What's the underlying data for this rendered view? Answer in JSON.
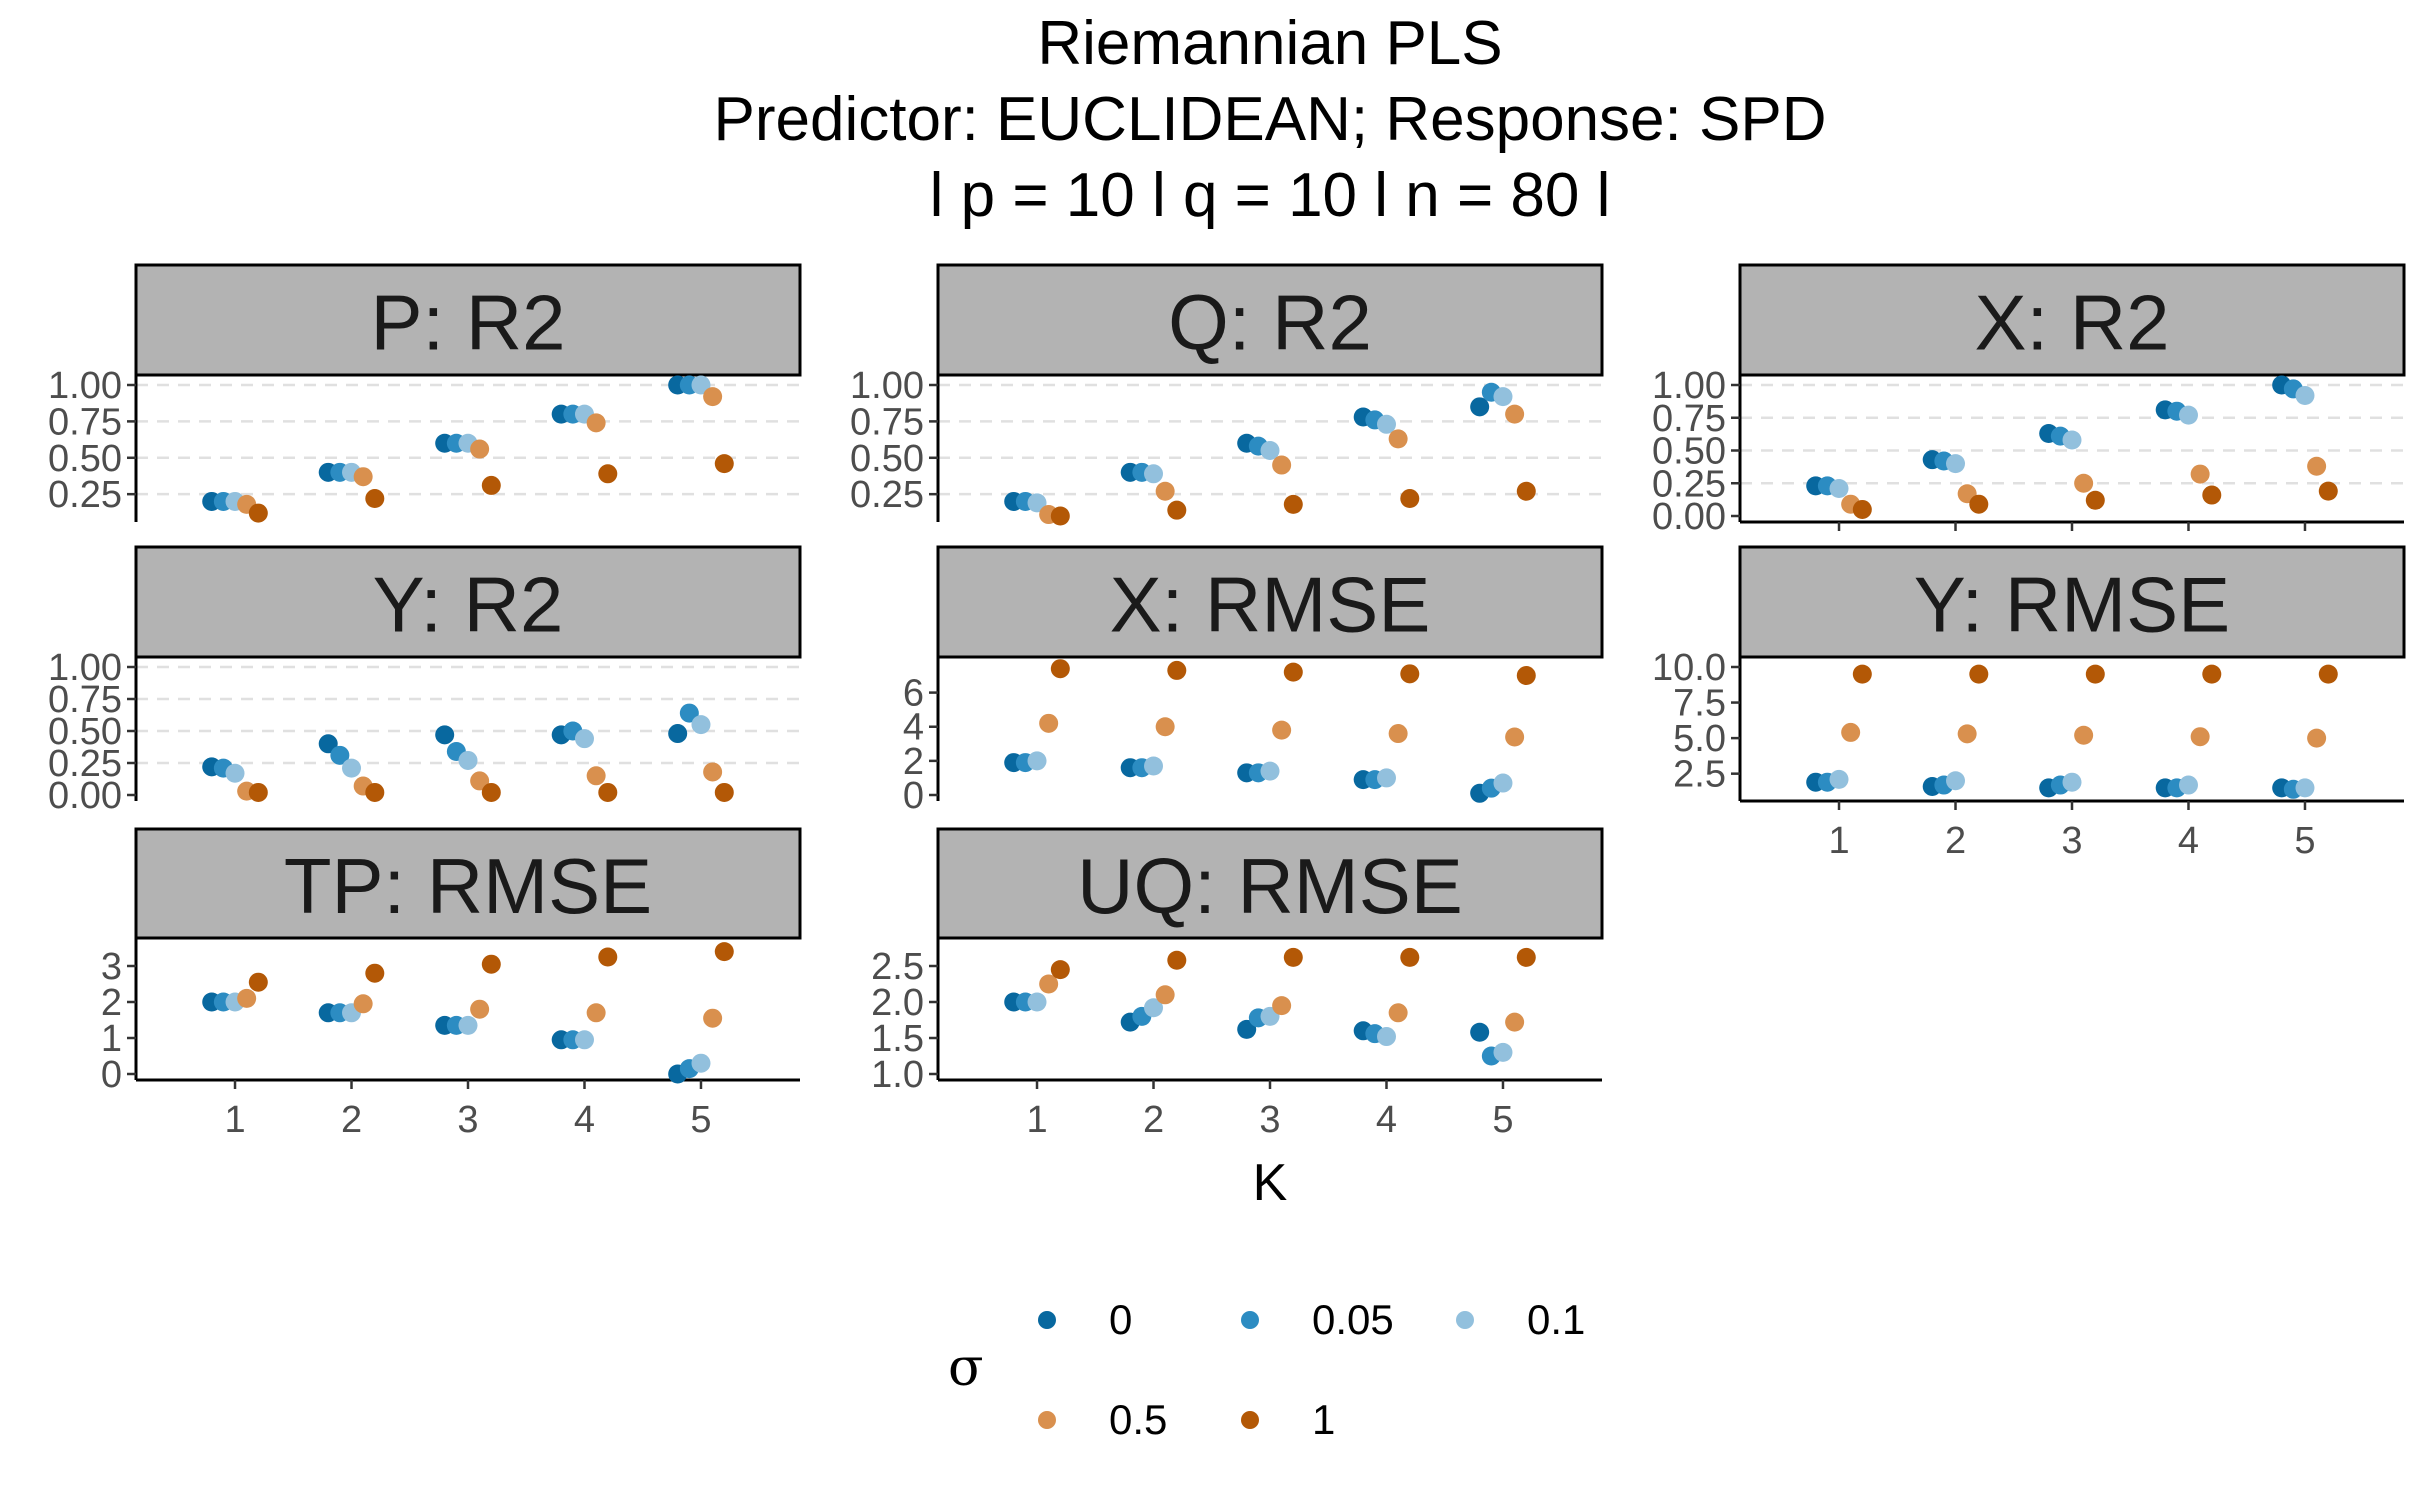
{
  "title": {
    "line1": "Riemannian PLS",
    "line2": "Predictor: EUCLIDEAN; Response: SPD",
    "line3": "l p = 10 l q = 10 l n = 80 l"
  },
  "xlabel": "K",
  "colors": {
    "0": "#08689f",
    "0.05": "#2c8cc2",
    "0.1": "#92c0dd",
    "0.5": "#d9904e",
    "1": "#b35806",
    "strip_fill": "#b3b3b3",
    "grid": "#e0e0e0"
  },
  "legend": {
    "title": "σ",
    "items": [
      {
        "key": "0",
        "label": "0"
      },
      {
        "key": "0.05",
        "label": "0.05"
      },
      {
        "key": "0.1",
        "label": "0.1"
      },
      {
        "key": "0.5",
        "label": "0.5"
      },
      {
        "key": "1",
        "label": "1"
      }
    ]
  },
  "chart_data": {
    "type": "scatter",
    "x_categories": [
      "1",
      "2",
      "3",
      "4",
      "5"
    ],
    "sigma_levels": [
      "0",
      "0.05",
      "0.1",
      "0.5",
      "1"
    ],
    "panels": [
      {
        "id": "p-r2",
        "title": "P: R2",
        "ylim": [
          0.1,
          1.0
        ],
        "yticks": [
          0.25,
          0.5,
          0.75,
          1.0
        ],
        "ytick_labels": [
          "0.25",
          "0.50",
          "0.75",
          "1.00"
        ],
        "grid_y": [
          0.25,
          0.5,
          0.75,
          1.0
        ],
        "x_axis": false,
        "series": [
          {
            "sigma": "0",
            "values": [
              0.2,
              0.4,
              0.6,
              0.8,
              1.0
            ]
          },
          {
            "sigma": "0.05",
            "values": [
              0.2,
              0.4,
              0.6,
              0.8,
              1.0
            ]
          },
          {
            "sigma": "0.1",
            "values": [
              0.2,
              0.4,
              0.6,
              0.8,
              1.0
            ]
          },
          {
            "sigma": "0.5",
            "values": [
              0.18,
              0.37,
              0.56,
              0.74,
              0.92
            ]
          },
          {
            "sigma": "1",
            "values": [
              0.12,
              0.22,
              0.31,
              0.39,
              0.46
            ]
          }
        ]
      },
      {
        "id": "q-r2",
        "title": "Q: R2",
        "ylim": [
          0.1,
          1.0
        ],
        "yticks": [
          0.25,
          0.5,
          0.75,
          1.0
        ],
        "ytick_labels": [
          "0.25",
          "0.50",
          "0.75",
          "1.00"
        ],
        "grid_y": [
          0.25,
          0.5,
          0.75,
          1.0
        ],
        "x_axis": false,
        "series": [
          {
            "sigma": "0",
            "values": [
              0.2,
              0.4,
              0.6,
              0.78,
              0.85
            ]
          },
          {
            "sigma": "0.05",
            "values": [
              0.2,
              0.4,
              0.58,
              0.76,
              0.95
            ]
          },
          {
            "sigma": "0.1",
            "values": [
              0.19,
              0.39,
              0.55,
              0.73,
              0.92
            ]
          },
          {
            "sigma": "0.5",
            "values": [
              0.11,
              0.27,
              0.45,
              0.63,
              0.8
            ]
          },
          {
            "sigma": "1",
            "values": [
              0.1,
              0.14,
              0.18,
              0.22,
              0.27
            ]
          }
        ]
      },
      {
        "id": "x-r2",
        "title": "X: R2",
        "ylim": [
          0.0,
          1.0
        ],
        "yticks": [
          0.0,
          0.25,
          0.5,
          0.75,
          1.0
        ],
        "ytick_labels": [
          "0.00",
          "0.25",
          "0.50",
          "0.75",
          "1.00"
        ],
        "grid_y": [
          0.25,
          0.5,
          0.75,
          1.0
        ],
        "x_axis": true,
        "series": [
          {
            "sigma": "0",
            "values": [
              0.23,
              0.43,
              0.63,
              0.81,
              1.0
            ]
          },
          {
            "sigma": "0.05",
            "values": [
              0.23,
              0.42,
              0.61,
              0.8,
              0.97
            ]
          },
          {
            "sigma": "0.1",
            "values": [
              0.21,
              0.4,
              0.58,
              0.77,
              0.92
            ]
          },
          {
            "sigma": "0.5",
            "values": [
              0.09,
              0.17,
              0.25,
              0.32,
              0.38
            ]
          },
          {
            "sigma": "1",
            "values": [
              0.05,
              0.09,
              0.12,
              0.16,
              0.19
            ]
          }
        ]
      },
      {
        "id": "y-r2",
        "title": "Y: R2",
        "ylim": [
          0.0,
          1.0
        ],
        "yticks": [
          0.0,
          0.25,
          0.5,
          0.75,
          1.0
        ],
        "ytick_labels": [
          "0.00",
          "0.25",
          "0.50",
          "0.75",
          "1.00"
        ],
        "grid_y": [
          0.25,
          0.5,
          0.75,
          1.0
        ],
        "x_axis": false,
        "series": [
          {
            "sigma": "0",
            "values": [
              0.22,
              0.4,
              0.47,
              0.47,
              0.48
            ]
          },
          {
            "sigma": "0.05",
            "values": [
              0.21,
              0.31,
              0.34,
              0.5,
              0.64
            ]
          },
          {
            "sigma": "0.1",
            "values": [
              0.17,
              0.21,
              0.27,
              0.44,
              0.55
            ]
          },
          {
            "sigma": "0.5",
            "values": [
              0.03,
              0.07,
              0.11,
              0.15,
              0.18
            ]
          },
          {
            "sigma": "1",
            "values": [
              0.02,
              0.02,
              0.02,
              0.02,
              0.02
            ]
          }
        ]
      },
      {
        "id": "x-rmse",
        "title": "X: RMSE",
        "ylim": [
          0.0,
          7.5
        ],
        "yticks": [
          0,
          2,
          4,
          6
        ],
        "ytick_labels": [
          "0",
          "2",
          "4",
          "6"
        ],
        "grid_y": [],
        "x_axis": false,
        "series": [
          {
            "sigma": "0",
            "values": [
              1.9,
              1.6,
              1.3,
              0.9,
              0.1
            ]
          },
          {
            "sigma": "0.05",
            "values": [
              1.9,
              1.6,
              1.3,
              0.9,
              0.4
            ]
          },
          {
            "sigma": "0.1",
            "values": [
              2.0,
              1.7,
              1.4,
              1.0,
              0.7
            ]
          },
          {
            "sigma": "0.5",
            "values": [
              4.2,
              4.0,
              3.8,
              3.6,
              3.4
            ]
          },
          {
            "sigma": "1",
            "values": [
              7.4,
              7.3,
              7.2,
              7.1,
              7.0
            ]
          }
        ]
      },
      {
        "id": "y-rmse",
        "title": "Y: RMSE",
        "ylim": [
          1.0,
          10.0
        ],
        "yticks": [
          2.5,
          5.0,
          7.5,
          10.0
        ],
        "ytick_labels": [
          "2.5",
          "5.0",
          "7.5",
          "10.0"
        ],
        "grid_y": [],
        "x_axis": true,
        "series": [
          {
            "sigma": "0",
            "values": [
              1.9,
              1.6,
              1.5,
              1.5,
              1.5
            ]
          },
          {
            "sigma": "0.05",
            "values": [
              1.9,
              1.7,
              1.7,
              1.5,
              1.4
            ]
          },
          {
            "sigma": "0.1",
            "values": [
              2.1,
              2.0,
              1.9,
              1.7,
              1.5
            ]
          },
          {
            "sigma": "0.5",
            "values": [
              5.4,
              5.3,
              5.2,
              5.1,
              5.0
            ]
          },
          {
            "sigma": "1",
            "values": [
              9.5,
              9.5,
              9.5,
              9.5,
              9.5
            ]
          }
        ]
      },
      {
        "id": "tp-rmse",
        "title": "TP: RMSE",
        "ylim": [
          0.0,
          3.5
        ],
        "yticks": [
          0,
          1,
          2,
          3
        ],
        "ytick_labels": [
          "0",
          "1",
          "2",
          "3"
        ],
        "grid_y": [],
        "x_axis": true,
        "series": [
          {
            "sigma": "0",
            "values": [
              2.0,
              1.7,
              1.35,
              0.95,
              0.0
            ]
          },
          {
            "sigma": "0.05",
            "values": [
              2.0,
              1.7,
              1.35,
              0.95,
              0.15
            ]
          },
          {
            "sigma": "0.1",
            "values": [
              2.0,
              1.7,
              1.35,
              0.95,
              0.3
            ]
          },
          {
            "sigma": "0.5",
            "values": [
              2.1,
              1.95,
              1.8,
              1.7,
              1.55
            ]
          },
          {
            "sigma": "1",
            "values": [
              2.55,
              2.8,
              3.05,
              3.25,
              3.4
            ]
          }
        ]
      },
      {
        "id": "uq-rmse",
        "title": "UQ: RMSE",
        "ylim": [
          1.0,
          2.75
        ],
        "yticks": [
          1.0,
          1.5,
          2.0,
          2.5
        ],
        "ytick_labels": [
          "1.0",
          "1.5",
          "2.0",
          "2.5"
        ],
        "grid_y": [],
        "x_axis": true,
        "series": [
          {
            "sigma": "0",
            "values": [
              2.0,
              1.72,
              1.62,
              1.6,
              1.58
            ]
          },
          {
            "sigma": "0.05",
            "values": [
              2.0,
              1.8,
              1.78,
              1.56,
              1.25
            ]
          },
          {
            "sigma": "0.1",
            "values": [
              2.0,
              1.92,
              1.8,
              1.52,
              1.3
            ]
          },
          {
            "sigma": "0.5",
            "values": [
              2.25,
              2.1,
              1.95,
              1.85,
              1.72
            ]
          },
          {
            "sigma": "1",
            "values": [
              2.45,
              2.58,
              2.62,
              2.62,
              2.62
            ]
          }
        ]
      }
    ]
  }
}
